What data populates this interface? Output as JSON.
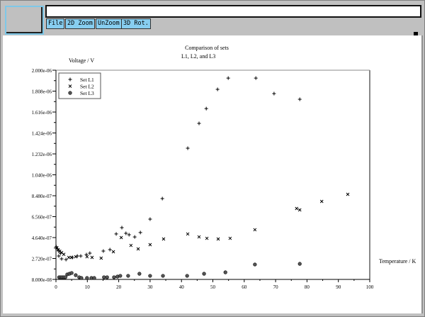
{
  "toolbar": {
    "file": "File",
    "zoom2d": "2D Zoom",
    "unzoom": "UnZoom",
    "rot3d": "3D Rot.",
    "title_field": ""
  },
  "chart_data": {
    "type": "scatter",
    "title": [
      "Comparison of sets",
      "L1, L2, and L3"
    ],
    "xlabel": "Temperature / K",
    "ylabel": "Voltage / V",
    "xlim": [
      0,
      100
    ],
    "ylim": [
      8e-08,
      2e-06
    ],
    "x_ticks": [
      "0",
      "10",
      "20",
      "30",
      "40",
      "50",
      "60",
      "70",
      "80",
      "90",
      "100"
    ],
    "y_ticks": [
      "8.000e-08",
      "2.720e-07",
      "4.640e-07",
      "6.560e-07",
      "8.480e-07",
      "1.040e-06",
      "1.232e-06",
      "1.424e-06",
      "1.616e-06",
      "1.808e-06",
      "2.000e-06"
    ],
    "grid": false,
    "legend_position": "top-left",
    "series": [
      {
        "name": "Set L1",
        "marker": "plus",
        "points": [
          [
            0.1,
            3.8e-07
          ],
          [
            0.5,
            3.6e-07
          ],
          [
            1.0,
            3.4e-07
          ],
          [
            1.5,
            3.2e-07
          ],
          [
            0.9,
            2.95e-07
          ],
          [
            1.8,
            2.69e-07
          ],
          [
            3.2,
            2.62e-07
          ],
          [
            5.2,
            2.82e-07
          ],
          [
            6.8,
            2.95e-07
          ],
          [
            7.9,
            2.95e-07
          ],
          [
            9.7,
            3.08e-07
          ],
          [
            10.8,
            3.21e-07
          ],
          [
            15.1,
            3.4e-07
          ],
          [
            17.2,
            3.53e-07
          ],
          [
            19.2,
            4.97e-07
          ],
          [
            21.0,
            5.55e-07
          ],
          [
            22.3,
            5.03e-07
          ],
          [
            23.3,
            4.9e-07
          ],
          [
            25.1,
            4.7e-07
          ],
          [
            26.9,
            5.1e-07
          ],
          [
            30.0,
            6.33e-07
          ],
          [
            33.9,
            8.22e-07
          ],
          [
            42.0,
            1.284e-06
          ],
          [
            45.6,
            1.512e-06
          ],
          [
            47.9,
            1.648e-06
          ],
          [
            51.5,
            1.824e-06
          ],
          [
            54.9,
            1.928e-06
          ],
          [
            63.7,
            1.928e-06
          ],
          [
            69.5,
            1.785e-06
          ],
          [
            77.7,
            1.733e-06
          ]
        ]
      },
      {
        "name": "Set L2",
        "marker": "cross",
        "points": [
          [
            0.3,
            3.7e-07
          ],
          [
            0.7,
            3.53e-07
          ],
          [
            1.2,
            3.4e-07
          ],
          [
            1.8,
            3.27e-07
          ],
          [
            2.5,
            3.1e-07
          ],
          [
            4.1,
            2.82e-07
          ],
          [
            5.0,
            2.82e-07
          ],
          [
            6.3,
            2.88e-07
          ],
          [
            9.9,
            2.88e-07
          ],
          [
            11.5,
            2.82e-07
          ],
          [
            14.4,
            2.75e-07
          ],
          [
            18.3,
            3.34e-07
          ],
          [
            20.8,
            4.64e-07
          ],
          [
            23.9,
            3.92e-07
          ],
          [
            26.2,
            3.6e-07
          ],
          [
            30.0,
            3.99e-07
          ],
          [
            34.3,
            4.51e-07
          ],
          [
            42.0,
            4.97e-07
          ],
          [
            45.6,
            4.7e-07
          ],
          [
            48.1,
            4.57e-07
          ],
          [
            51.7,
            4.51e-07
          ],
          [
            55.5,
            4.57e-07
          ],
          [
            63.4,
            5.36e-07
          ],
          [
            76.7,
            7.31e-07
          ],
          [
            77.7,
            7.18e-07
          ],
          [
            84.7,
            7.96e-07
          ],
          [
            93.0,
            8.61e-07
          ]
        ]
      },
      {
        "name": "Set L3",
        "marker": "circle",
        "points": [
          [
            1.0,
            1e-07
          ],
          [
            1.5,
            1e-07
          ],
          [
            2.0,
            1e-07
          ],
          [
            2.5,
            1e-07
          ],
          [
            3.0,
            1e-07
          ],
          [
            3.6,
            1.26e-07
          ],
          [
            4.3,
            1.32e-07
          ],
          [
            5.0,
            1.39e-07
          ],
          [
            6.3,
            1.19e-07
          ],
          [
            7.4,
            1e-07
          ],
          [
            8.1,
            9.3e-08
          ],
          [
            9.9,
            9.3e-08
          ],
          [
            11.3,
            9.3e-08
          ],
          [
            12.2,
            9.3e-08
          ],
          [
            15.3,
            1e-07
          ],
          [
            16.3,
            1e-07
          ],
          [
            18.5,
            1e-07
          ],
          [
            19.6,
            1.06e-07
          ],
          [
            20.5,
            1.13e-07
          ],
          [
            23.0,
            1.13e-07
          ],
          [
            26.6,
            1.32e-07
          ],
          [
            30.0,
            1.13e-07
          ],
          [
            34.1,
            1.13e-07
          ],
          [
            41.8,
            1.13e-07
          ],
          [
            47.2,
            1.32e-07
          ],
          [
            54.0,
            1.45e-07
          ],
          [
            63.4,
            2.17e-07
          ],
          [
            77.7,
            2.23e-07
          ]
        ]
      }
    ]
  }
}
